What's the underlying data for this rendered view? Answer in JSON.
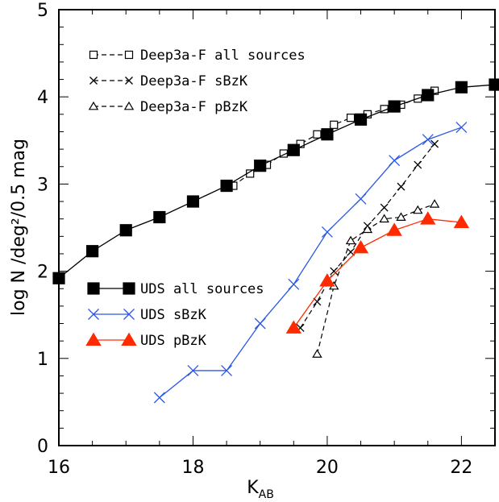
{
  "chart_data": {
    "type": "line",
    "xlabel": "K",
    "xlabel_sub": "AB",
    "ylabel": "log N  /deg²/0.5 mag",
    "xlim": [
      16,
      22.5
    ],
    "ylim": [
      0,
      5
    ],
    "x_ticks": [
      16,
      18,
      20,
      22
    ],
    "y_ticks": [
      0,
      1,
      2,
      3,
      4,
      5
    ],
    "grid": false,
    "series": [
      {
        "name": "Deep3a-F all sources",
        "marker": "open-square",
        "line": "dashed",
        "color": "#000000",
        "x": [
          18.6,
          18.85,
          19.1,
          19.35,
          19.6,
          19.85,
          20.1,
          20.35,
          20.6,
          20.85,
          21.1,
          21.35,
          21.6
        ],
        "y": [
          2.98,
          3.12,
          3.22,
          3.35,
          3.46,
          3.57,
          3.68,
          3.76,
          3.8,
          3.86,
          3.91,
          3.98,
          4.07
        ]
      },
      {
        "name": "Deep3a-F sBzK",
        "marker": "x",
        "line": "dashed",
        "color": "#000000",
        "x": [
          19.6,
          19.85,
          20.1,
          20.35,
          20.6,
          20.85,
          21.1,
          21.35,
          21.6
        ],
        "y": [
          1.35,
          1.65,
          2.0,
          2.22,
          2.52,
          2.73,
          2.97,
          3.22,
          3.46
        ]
      },
      {
        "name": "Deep3a-F pBzK",
        "marker": "open-triangle",
        "line": "dashed",
        "color": "#000000",
        "x": [
          19.85,
          20.1,
          20.35,
          20.6,
          20.85,
          21.1,
          21.35,
          21.6
        ],
        "y": [
          1.05,
          1.83,
          2.35,
          2.48,
          2.6,
          2.62,
          2.7,
          2.77
        ]
      },
      {
        "name": "UDS all sources",
        "marker": "filled-square",
        "line": "solid",
        "color": "#000000",
        "x": [
          16.0,
          16.5,
          17.0,
          17.5,
          18.0,
          18.5,
          19.0,
          19.5,
          20.0,
          20.5,
          21.0,
          21.5,
          22.0,
          22.5
        ],
        "y": [
          1.92,
          2.23,
          2.47,
          2.62,
          2.8,
          2.98,
          3.21,
          3.39,
          3.57,
          3.74,
          3.89,
          4.02,
          4.11,
          4.14
        ]
      },
      {
        "name": "UDS sBzK",
        "marker": "x",
        "line": "solid",
        "color": "#2a57e8",
        "x": [
          17.5,
          18.0,
          18.5,
          19.0,
          19.5,
          20.0,
          20.5,
          21.0,
          21.5,
          22.0
        ],
        "y": [
          0.55,
          0.86,
          0.86,
          1.4,
          1.85,
          2.45,
          2.83,
          3.27,
          3.51,
          3.65
        ]
      },
      {
        "name": "UDS pBzK",
        "marker": "filled-triangle",
        "line": "solid",
        "color": "#ff2a00",
        "x": [
          19.5,
          20.0,
          20.5,
          21.0,
          21.5,
          22.0
        ],
        "y": [
          1.35,
          1.89,
          2.27,
          2.47,
          2.6,
          2.56
        ]
      }
    ],
    "legend_upper": [
      "Deep3a-F all sources",
      "Deep3a-F sBzK",
      "Deep3a-F pBzK"
    ],
    "legend_lower": [
      "UDS all sources",
      "UDS sBzK",
      "UDS pBzK"
    ]
  }
}
